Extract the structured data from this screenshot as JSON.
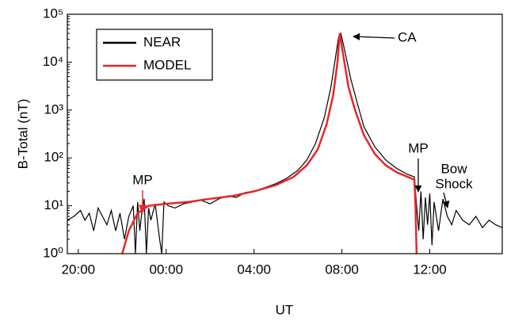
{
  "chart_data": {
    "type": "line",
    "x_label": "UT",
    "y_label": "B-Total (nT)",
    "log_y": true,
    "xlim": [
      19.5,
      39.3
    ],
    "ylim": [
      1,
      100000
    ],
    "xticks": [
      {
        "value": 20,
        "label": "20:00"
      },
      {
        "value": 24,
        "label": "00:00"
      },
      {
        "value": 28,
        "label": "04:00"
      },
      {
        "value": 32,
        "label": "08:00"
      },
      {
        "value": 36,
        "label": "12:00"
      }
    ],
    "yticks": [
      {
        "value": 1,
        "label": "10⁰"
      },
      {
        "value": 10,
        "label": "10¹"
      },
      {
        "value": 100,
        "label": "10²"
      },
      {
        "value": 1000,
        "label": "10³"
      },
      {
        "value": 10000,
        "label": "10⁴"
      },
      {
        "value": 100000,
        "label": "10⁵"
      }
    ],
    "legend": "upper left",
    "annotations": {
      "ca": "CA",
      "mp_inbound": "MP",
      "mp_outbound": "MP",
      "bow_shock": [
        "Bow",
        "Shock"
      ]
    },
    "series": [
      {
        "name": "NEAR",
        "color": "#000000",
        "x": [
          19.5,
          19.8,
          20.1,
          20.3,
          20.5,
          20.7,
          20.9,
          21.1,
          21.3,
          21.5,
          21.7,
          21.9,
          22.1,
          22.3,
          22.5,
          22.6,
          22.7,
          22.8,
          22.9,
          23.0,
          23.1,
          23.2,
          23.3,
          23.5,
          23.7,
          23.8,
          23.9,
          24.1,
          24.4,
          24.8,
          25.2,
          25.6,
          26.0,
          26.4,
          26.8,
          27.2,
          27.6,
          28.0,
          28.5,
          29.0,
          29.5,
          30.0,
          30.4,
          30.8,
          31.2,
          31.5,
          31.7,
          31.85,
          31.95,
          32.1,
          32.4,
          32.7,
          33.0,
          33.5,
          34.0,
          34.5,
          35.0,
          35.3,
          35.4,
          35.5,
          35.6,
          35.7,
          35.8,
          35.9,
          36.0,
          36.1,
          36.2,
          36.4,
          36.6,
          36.8,
          37.0,
          37.2,
          37.5,
          37.8,
          38.1,
          38.4,
          38.7,
          39.0,
          39.3
        ],
        "values": [
          5,
          6,
          8,
          5,
          7,
          3,
          9,
          6,
          4,
          8,
          3,
          7,
          2,
          6,
          10,
          1,
          12,
          3,
          8,
          14,
          1,
          9,
          5,
          11,
          2,
          1,
          12,
          10,
          9,
          11,
          12,
          13,
          11,
          14,
          16,
          15,
          19,
          20,
          24,
          29,
          38,
          55,
          90,
          200,
          700,
          3000,
          12000,
          33000,
          40000,
          20000,
          4500,
          1400,
          450,
          170,
          90,
          60,
          45,
          40,
          10,
          3,
          20,
          2,
          15,
          4,
          18,
          1.5,
          12,
          3,
          14,
          6,
          4,
          8,
          5,
          4,
          6,
          3.5,
          5,
          4,
          3.5
        ]
      },
      {
        "name": "MODEL",
        "color": "#e8262a",
        "x": [
          22.0,
          22.3,
          22.7,
          23.2,
          24.0,
          25.0,
          26.0,
          27.0,
          28.0,
          29.0,
          29.8,
          30.4,
          30.9,
          31.3,
          31.6,
          31.8,
          31.9,
          32.05,
          32.3,
          32.6,
          33.0,
          33.5,
          34.0,
          34.5,
          35.0,
          35.3,
          35.35,
          35.4
        ],
        "values": [
          1,
          3,
          7,
          10,
          11,
          12,
          14,
          16,
          20,
          27,
          40,
          70,
          150,
          500,
          2000,
          10000,
          40000,
          15000,
          3000,
          1000,
          300,
          120,
          70,
          50,
          40,
          35,
          10,
          1
        ]
      }
    ]
  }
}
